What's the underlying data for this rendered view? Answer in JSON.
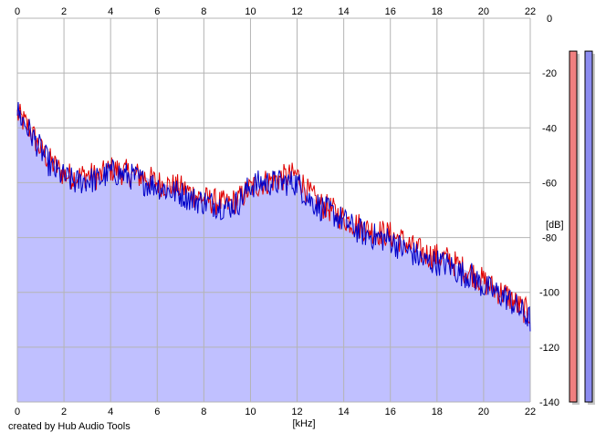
{
  "footer": {
    "credit": "created by Hub Audio Tools"
  },
  "chart_data": {
    "type": "area",
    "xlabel": "[kHz]",
    "ylabel": "[dB]",
    "xlim": [
      0,
      22
    ],
    "ylim": [
      -140,
      0
    ],
    "x_ticks": [
      0,
      2,
      4,
      6,
      8,
      10,
      12,
      14,
      16,
      18,
      20,
      22
    ],
    "y_ticks": [
      0,
      -20,
      -40,
      -60,
      -80,
      -100,
      -120,
      -140
    ],
    "grid": true,
    "colors": {
      "fill": "#c0c0ff",
      "background": "#ffffff",
      "grid": "#b4b4b4",
      "left_channel": "#e00000",
      "right_channel": "#0000c8",
      "meter_left": "#f08080",
      "meter_right": "#8c8cf0"
    },
    "series": [
      {
        "color": "#e00000",
        "x": [
          0,
          0.5,
          1,
          1.5,
          2,
          2.5,
          3,
          3.5,
          4,
          4.5,
          5,
          5.5,
          6,
          6.5,
          7,
          7.5,
          8,
          8.5,
          9,
          9.5,
          10,
          10.5,
          11,
          11.5,
          12,
          12.5,
          13,
          13.5,
          14,
          14.5,
          15,
          15.5,
          16,
          16.5,
          17,
          17.5,
          18,
          18.5,
          19,
          19.5,
          20,
          20.5,
          21,
          21.5,
          22
        ],
        "values": [
          -35,
          -40,
          -48,
          -53,
          -57,
          -58,
          -57,
          -58,
          -55,
          -56,
          -57,
          -58,
          -60,
          -61,
          -62,
          -64,
          -66,
          -67,
          -68,
          -66,
          -62,
          -60,
          -59,
          -58,
          -57,
          -64,
          -68,
          -70,
          -73,
          -75,
          -77,
          -78,
          -79,
          -81,
          -84,
          -86,
          -87,
          -88,
          -91,
          -93,
          -96,
          -99,
          -101,
          -105,
          -108
        ]
      },
      {
        "color": "#0000c8",
        "x": [
          0,
          0.5,
          1,
          1.5,
          2,
          2.5,
          3,
          3.5,
          4,
          4.5,
          5,
          5.5,
          6,
          6.5,
          7,
          7.5,
          8,
          8.5,
          9,
          9.5,
          10,
          10.5,
          11,
          11.5,
          12,
          12.5,
          13,
          13.5,
          14,
          14.5,
          15,
          15.5,
          16,
          16.5,
          17,
          17.5,
          18,
          18.5,
          19,
          19.5,
          20,
          20.5,
          21,
          21.5,
          22
        ],
        "values": [
          -34,
          -41,
          -48,
          -55,
          -58,
          -60,
          -59,
          -59,
          -56,
          -57,
          -58,
          -60,
          -61,
          -63,
          -64,
          -66,
          -67,
          -68,
          -69,
          -67,
          -61,
          -60,
          -60,
          -60,
          -60,
          -66,
          -69,
          -71,
          -74,
          -77,
          -79,
          -80,
          -81,
          -84,
          -86,
          -89,
          -89,
          -90,
          -93,
          -94,
          -98,
          -100,
          -102,
          -106,
          -110
        ]
      }
    ],
    "level_meters": {
      "left_top_db": -12,
      "right_top_db": -12
    }
  }
}
